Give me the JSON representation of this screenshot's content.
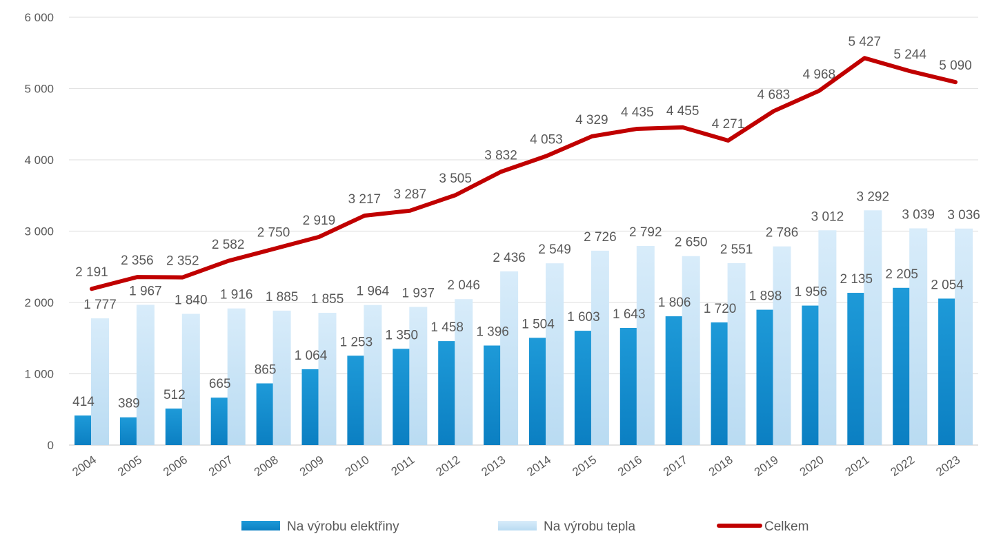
{
  "chart_data": {
    "type": "bar",
    "categories": [
      "2004",
      "2005",
      "2006",
      "2007",
      "2008",
      "2009",
      "2010",
      "2011",
      "2012",
      "2013",
      "2014",
      "2015",
      "2016",
      "2017",
      "2018",
      "2019",
      "2020",
      "2021",
      "2022",
      "2023"
    ],
    "series": [
      {
        "name": "Na výrobu elektřiny",
        "type": "bar",
        "color": "#1591d1",
        "values": [
          414,
          389,
          512,
          665,
          865,
          1064,
          1253,
          1350,
          1458,
          1396,
          1504,
          1603,
          1643,
          1806,
          1720,
          1898,
          1956,
          2135,
          2205,
          2054
        ],
        "labels": [
          "414",
          "389",
          "512",
          "665",
          "865",
          "1 064",
          "1 253",
          "1 350",
          "1 458",
          "1 396",
          "1 504",
          "1 603",
          "1 643",
          "1 806",
          "1 720",
          "1 898",
          "1 956",
          "2 135",
          "2 205",
          "2 054"
        ]
      },
      {
        "name": "Na výrobu tepla",
        "type": "bar",
        "color": "#c6e3f7",
        "values": [
          1777,
          1967,
          1840,
          1916,
          1885,
          1855,
          1964,
          1937,
          2046,
          2436,
          2549,
          2726,
          2792,
          2650,
          2551,
          2786,
          3012,
          3292,
          3039,
          3036
        ],
        "labels": [
          "1 777",
          "1 967",
          "1 840",
          "1 916",
          "1 885",
          "1 855",
          "1 964",
          "1 937",
          "2 046",
          "2 436",
          "2 549",
          "2 726",
          "2 792",
          "2 650",
          "2 551",
          "2 786",
          "3 012",
          "3 292",
          "3 039",
          "3 036"
        ]
      },
      {
        "name": "Celkem",
        "type": "line",
        "color": "#c00000",
        "values": [
          2191,
          2356,
          2352,
          2582,
          2750,
          2919,
          3217,
          3287,
          3505,
          3832,
          4053,
          4329,
          4435,
          4455,
          4271,
          4683,
          4968,
          5427,
          5244,
          5090
        ],
        "labels": [
          "2 191",
          "2 356",
          "2 352",
          "2 582",
          "2 750",
          "2 919",
          "3 217",
          "3 287",
          "3 505",
          "3 832",
          "4 053",
          "4 329",
          "4 435",
          "4 455",
          "4 271",
          "4 683",
          "4 968",
          "5 427",
          "5 244",
          "5 090"
        ]
      }
    ],
    "yticks": [
      0,
      1000,
      2000,
      3000,
      4000,
      5000,
      6000
    ],
    "ytick_labels": [
      "0",
      "1 000",
      "2 000",
      "3 000",
      "4 000",
      "5 000",
      "6 000"
    ],
    "ylim": [
      0,
      6000
    ],
    "grid": true,
    "legend_position": "bottom",
    "title": "",
    "xlabel": "",
    "ylabel": ""
  }
}
